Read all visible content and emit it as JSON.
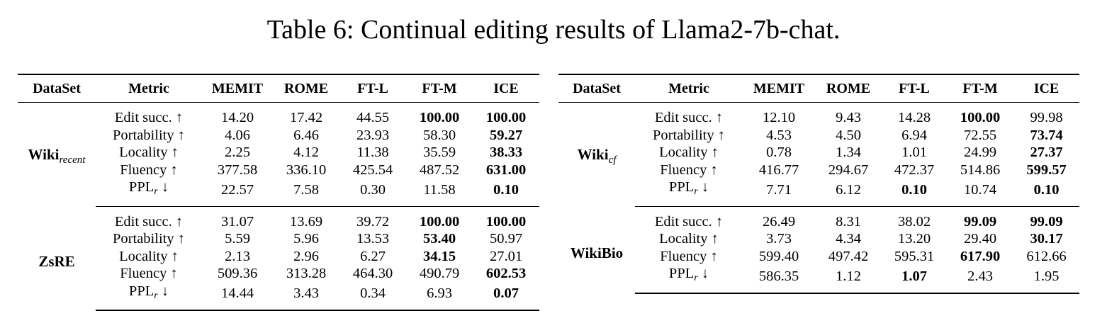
{
  "caption": "Table 6: Continual editing results of Llama2-7b-chat.",
  "tables": [
    {
      "headers": [
        "DataSet",
        "Metric",
        "MEMIT",
        "ROME",
        "FT-L",
        "FT-M",
        "ICE"
      ],
      "groups": [
        {
          "dataset": "Wiki",
          "dataset_sub": "recent",
          "rows": [
            {
              "metric": "Edit succ. ↑",
              "values": [
                "14.20",
                "17.42",
                "44.55",
                "100.00",
                "100.00"
              ],
              "bold": [
                3,
                4
              ]
            },
            {
              "metric": "Portability ↑",
              "values": [
                "4.06",
                "6.46",
                "23.93",
                "58.30",
                "59.27"
              ],
              "bold": [
                4
              ]
            },
            {
              "metric": "Locality ↑",
              "values": [
                "2.25",
                "4.12",
                "11.38",
                "35.59",
                "38.33"
              ],
              "bold": [
                4
              ]
            },
            {
              "metric": "Fluency ↑",
              "values": [
                "377.58",
                "336.10",
                "425.54",
                "487.52",
                "631.00"
              ],
              "bold": [
                4
              ]
            },
            {
              "metric": "PPL",
              "metric_sub": "r",
              "metric_suffix": " ↓",
              "values": [
                "22.57",
                "7.58",
                "0.30",
                "11.58",
                "0.10"
              ],
              "bold": [
                4
              ]
            }
          ]
        },
        {
          "dataset": "ZsRE",
          "dataset_sub": "",
          "rows": [
            {
              "metric": "Edit succ. ↑",
              "values": [
                "31.07",
                "13.69",
                "39.72",
                "100.00",
                "100.00"
              ],
              "bold": [
                3,
                4
              ]
            },
            {
              "metric": "Portability ↑",
              "values": [
                "5.59",
                "5.96",
                "13.53",
                "53.40",
                "50.97"
              ],
              "bold": [
                3
              ]
            },
            {
              "metric": "Locality ↑",
              "values": [
                "2.13",
                "2.96",
                "6.27",
                "34.15",
                "27.01"
              ],
              "bold": [
                3
              ]
            },
            {
              "metric": "Fluency ↑",
              "values": [
                "509.36",
                "313.28",
                "464.30",
                "490.79",
                "602.53"
              ],
              "bold": [
                4
              ]
            },
            {
              "metric": "PPL",
              "metric_sub": "r",
              "metric_suffix": " ↓",
              "values": [
                "14.44",
                "3.43",
                "0.34",
                "6.93",
                "0.07"
              ],
              "bold": [
                4
              ]
            }
          ]
        }
      ]
    },
    {
      "headers": [
        "DataSet",
        "Metric",
        "MEMIT",
        "ROME",
        "FT-L",
        "FT-M",
        "ICE"
      ],
      "groups": [
        {
          "dataset": "Wiki",
          "dataset_sub": "cf",
          "rows": [
            {
              "metric": "Edit succ. ↑",
              "values": [
                "12.10",
                "9.43",
                "14.28",
                "100.00",
                "99.98"
              ],
              "bold": [
                3
              ]
            },
            {
              "metric": "Portability ↑",
              "values": [
                "4.53",
                "4.50",
                "6.94",
                "72.55",
                "73.74"
              ],
              "bold": [
                4
              ]
            },
            {
              "metric": "Locality ↑",
              "values": [
                "0.78",
                "1.34",
                "1.01",
                "24.99",
                "27.37"
              ],
              "bold": [
                4
              ]
            },
            {
              "metric": "Fluency ↑",
              "values": [
                "416.77",
                "294.67",
                "472.37",
                "514.86",
                "599.57"
              ],
              "bold": [
                4
              ]
            },
            {
              "metric": "PPL",
              "metric_sub": "r",
              "metric_suffix": " ↓",
              "values": [
                "7.71",
                "6.12",
                "0.10",
                "10.74",
                "0.10"
              ],
              "bold": [
                2,
                4
              ]
            }
          ]
        },
        {
          "dataset": "WikiBio",
          "dataset_sub": "",
          "rows": [
            {
              "metric": "Edit succ. ↑",
              "values": [
                "26.49",
                "8.31",
                "38.02",
                "99.09",
                "99.09"
              ],
              "bold": [
                3,
                4
              ]
            },
            {
              "metric": "Locality ↑",
              "values": [
                "3.73",
                "4.34",
                "13.20",
                "29.40",
                "30.17"
              ],
              "bold": [
                4
              ]
            },
            {
              "metric": "Fluency ↑",
              "values": [
                "599.40",
                "497.42",
                "595.31",
                "617.90",
                "612.66"
              ],
              "bold": [
                3
              ]
            },
            {
              "metric": "PPL",
              "metric_sub": "r",
              "metric_suffix": " ↓",
              "values": [
                "586.35",
                "1.12",
                "1.07",
                "2.43",
                "1.95"
              ],
              "bold": [
                2
              ]
            }
          ]
        }
      ]
    }
  ]
}
